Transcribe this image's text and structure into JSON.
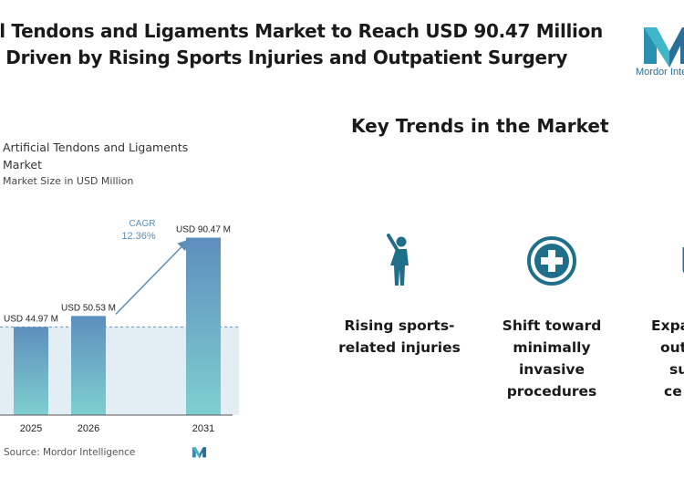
{
  "header": {
    "title_line1": "al Tendons and Ligaments Market to Reach USD 90.47 Million",
    "title_line2": "1 Driven by Rising Sports Injuries and Outpatient Surgery"
  },
  "brand": {
    "name": "Mordor Inte",
    "source": "Source: Mordor Intelligence",
    "colors": {
      "teal": "#3fb7c9",
      "blue": "#2a6f97",
      "navy": "#1f4e79"
    }
  },
  "chart_data": {
    "type": "bar",
    "title": "Artificial Tendons and Ligaments Market",
    "subtitle": "Market Size in USD Million",
    "categories": [
      "2025",
      "2026",
      "2031"
    ],
    "values": [
      44.97,
      50.53,
      90.47
    ],
    "value_labels": [
      "USD 44.97 M",
      "USD 50.53 M",
      "USD 90.47 M"
    ],
    "cagr_label": "CAGR",
    "cagr_value": "12.36%",
    "ylim": [
      0,
      100
    ],
    "reference_line": 44.97,
    "colors": {
      "bar_top": "#5d8fbd",
      "bar_bottom": "#7fcfd0",
      "shade": "#e3edf4",
      "arrow": "#5b8fb9"
    }
  },
  "trends": {
    "title": "Key Trends in the Market",
    "items": [
      {
        "icon": "baseball-player-icon",
        "label_line1": "Rising sports-",
        "label_line2": "related injuries",
        "label_line3": "",
        "label_line4": ""
      },
      {
        "icon": "medical-cross-icon",
        "label_line1": "Shift toward",
        "label_line2": "minimally",
        "label_line3": "invasive",
        "label_line4": "procedures"
      },
      {
        "icon": "clinic-icon",
        "label_line1": "Expa",
        "label_line2": "out",
        "label_line3": "su",
        "label_line4": "ce"
      }
    ],
    "icon_color": "#1f6f8b"
  }
}
